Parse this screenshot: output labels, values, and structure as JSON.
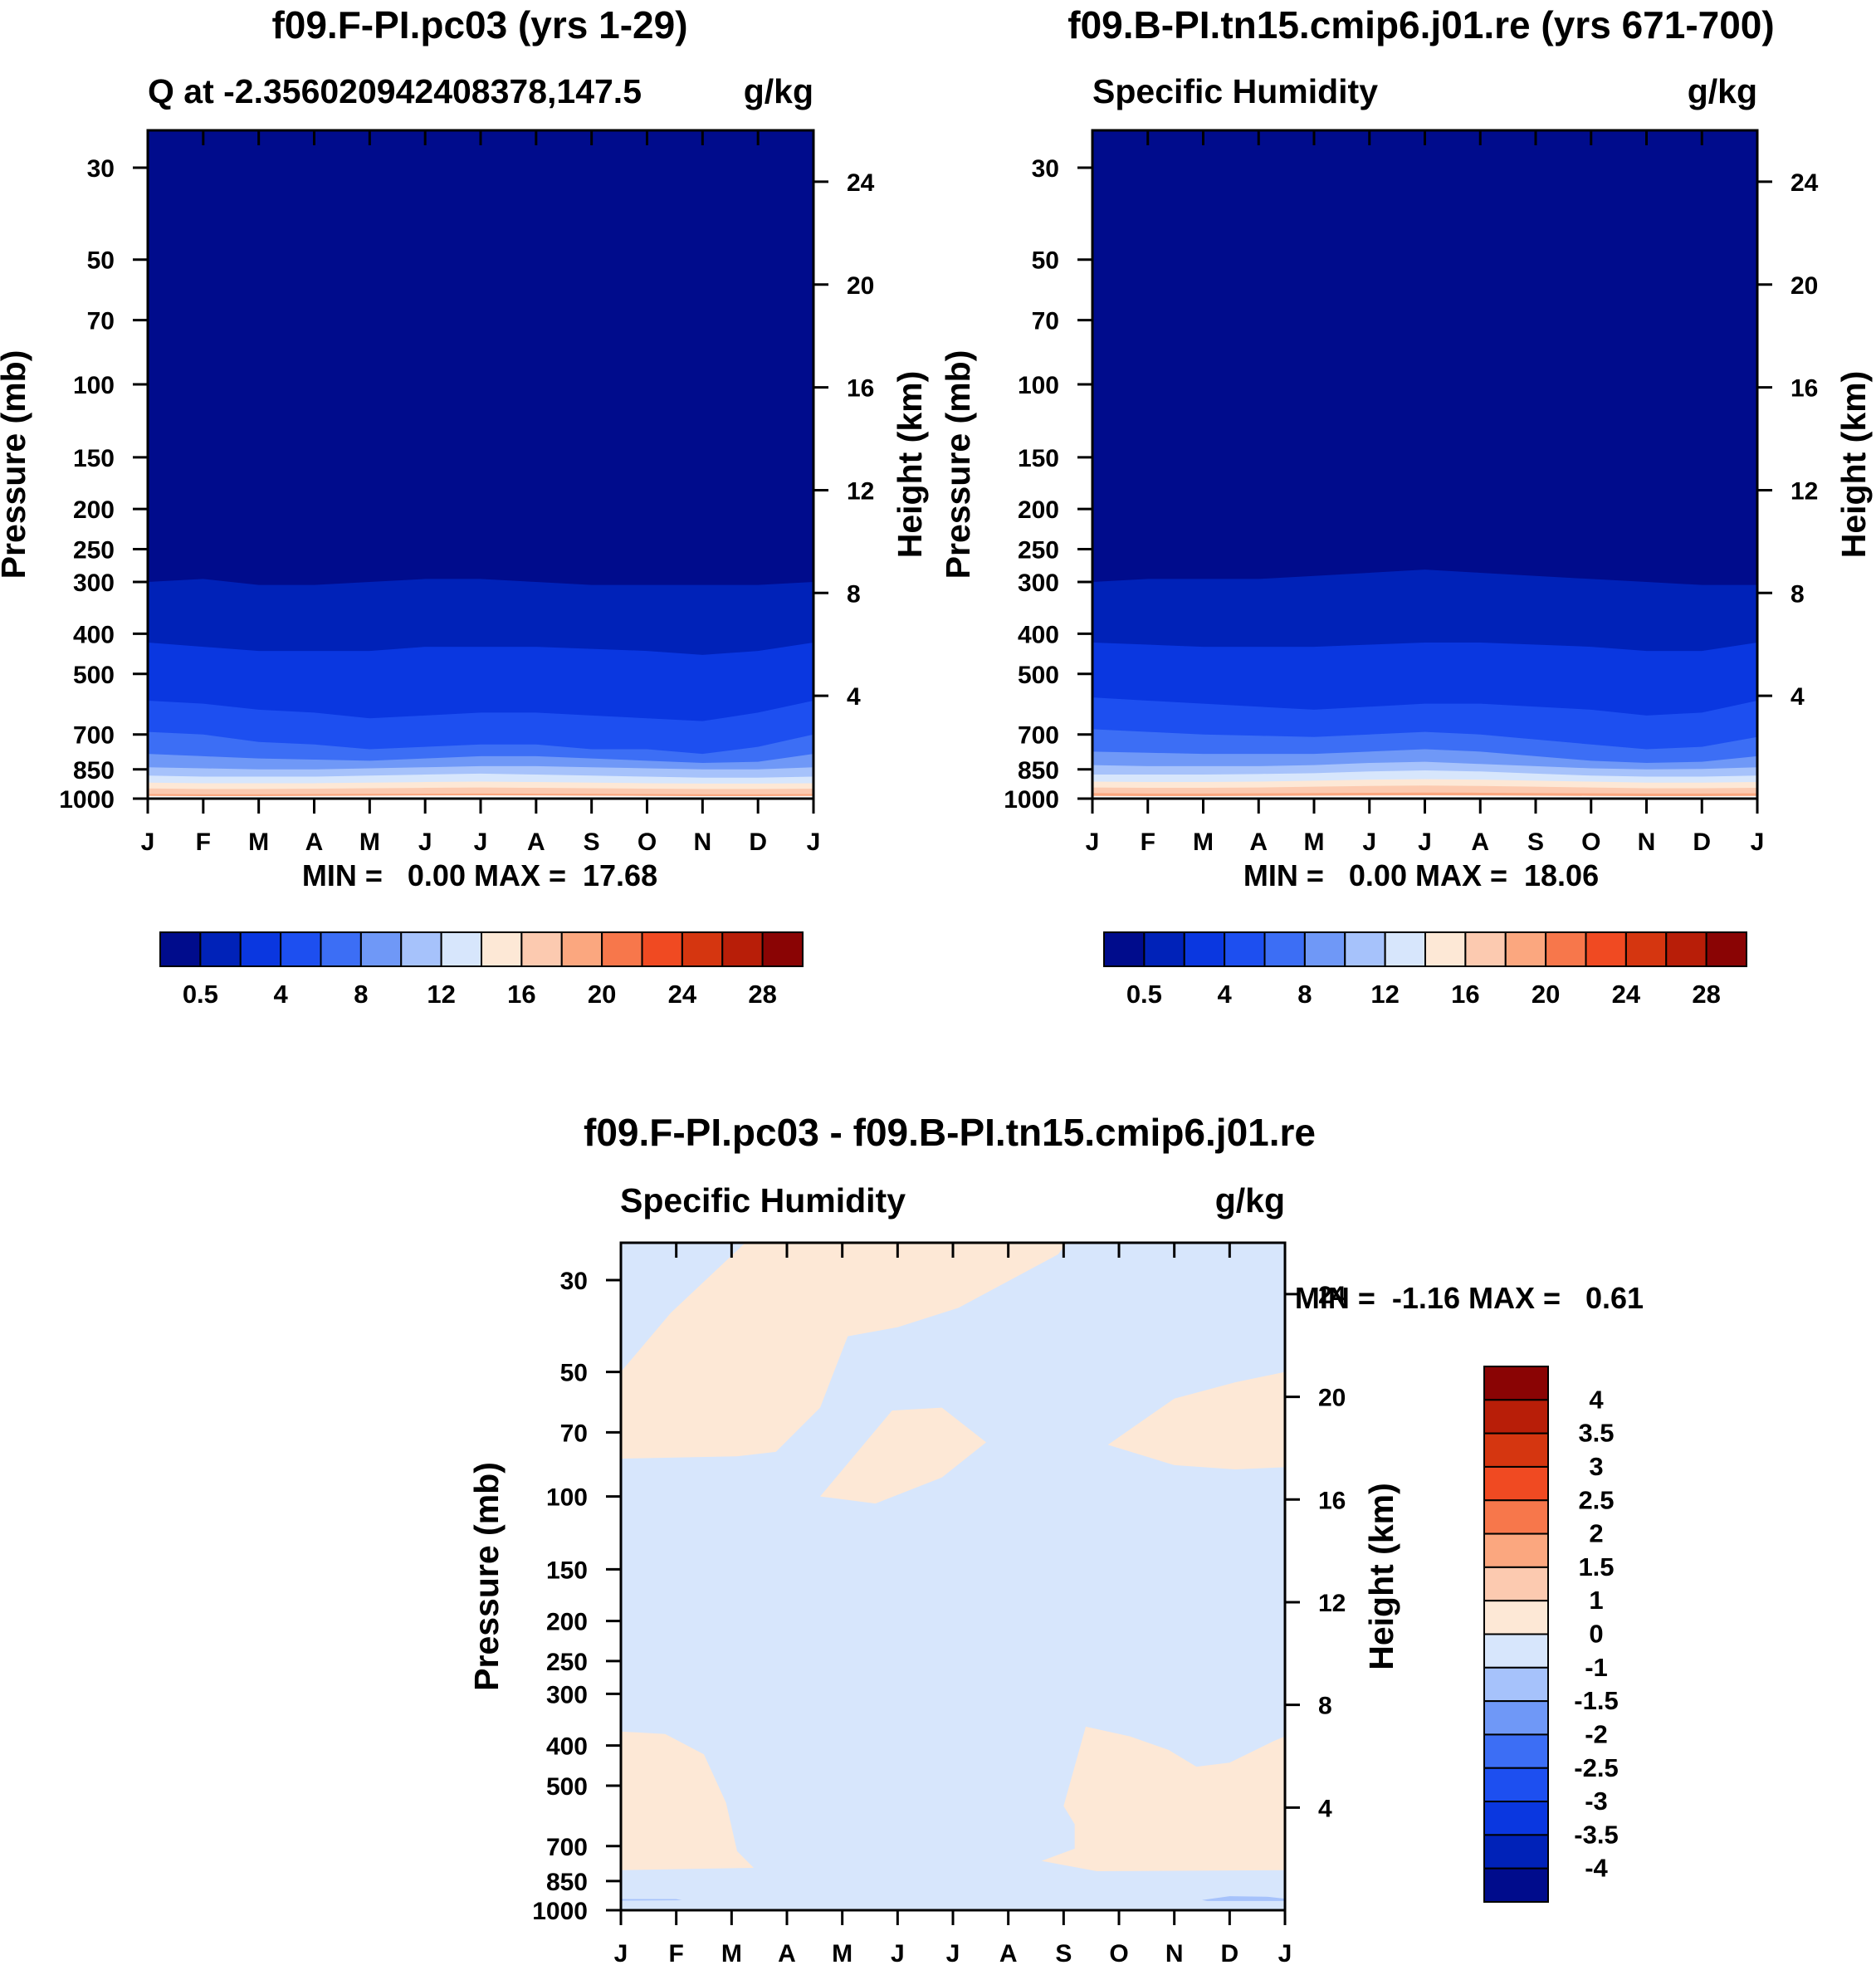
{
  "chart_data": [
    {
      "type": "heatmap",
      "title": "f09.F-PI.pc03 (yrs 1-29)",
      "left_label": "Q at -2.356020942408378,147.5",
      "right_label": "g/kg",
      "ylabel": "Pressure (mb)",
      "ylabel_right": "Height (km)",
      "x_ticks": [
        "J",
        "F",
        "M",
        "A",
        "M",
        "J",
        "J",
        "A",
        "S",
        "O",
        "N",
        "D",
        "J"
      ],
      "y_ticks": [
        "30",
        "50",
        "70",
        "100",
        "150",
        "200",
        "250",
        "300",
        "400",
        "500",
        "700",
        "850",
        "1000"
      ],
      "y_ticks_right": [
        "24",
        "20",
        "16",
        "12",
        "8",
        "4"
      ],
      "y_scale": "log",
      "ylim": [
        1000,
        24
      ],
      "stats_text": "MIN =   0.00 MAX =  17.68",
      "min": 0.0,
      "max": 17.68,
      "contour_boundaries_mb": [
        [
          300,
          295,
          305,
          305,
          300,
          295,
          295,
          300,
          305,
          305,
          305,
          305,
          300
        ],
        [
          420,
          430,
          440,
          440,
          440,
          430,
          430,
          430,
          435,
          440,
          450,
          440,
          420
        ],
        [
          580,
          590,
          610,
          620,
          640,
          630,
          620,
          620,
          630,
          640,
          650,
          620,
          580
        ],
        [
          690,
          700,
          730,
          740,
          760,
          750,
          740,
          740,
          760,
          760,
          780,
          750,
          700
        ],
        [
          780,
          790,
          800,
          805,
          810,
          800,
          790,
          790,
          800,
          810,
          820,
          815,
          780
        ],
        [
          840,
          845,
          850,
          850,
          845,
          840,
          835,
          835,
          840,
          845,
          850,
          850,
          840
        ],
        [
          880,
          885,
          885,
          885,
          880,
          875,
          870,
          875,
          880,
          885,
          890,
          890,
          885
        ],
        [
          915,
          918,
          918,
          918,
          915,
          912,
          910,
          912,
          915,
          918,
          920,
          920,
          918
        ],
        [
          945,
          948,
          948,
          946,
          944,
          942,
          940,
          942,
          944,
          946,
          948,
          948,
          946
        ],
        [
          975,
          976,
          976,
          975,
          974,
          973,
          972,
          973,
          974,
          975,
          976,
          976,
          975
        ]
      ],
      "colorbar": {
        "labels": [
          "0.5",
          "4",
          "8",
          "12",
          "16",
          "20",
          "24",
          "28"
        ],
        "colors": [
          "#000c8c",
          "#0022b8",
          "#0a37e0",
          "#1d4ff0",
          "#3c6ef5",
          "#6f98f7",
          "#a6c2fb",
          "#d7e6fc",
          "#fde8d6",
          "#fccab0",
          "#fba77f",
          "#f7774b",
          "#f04a22",
          "#d53610",
          "#b81e08",
          "#8a0404"
        ]
      }
    },
    {
      "type": "heatmap",
      "title": "f09.B-PI.tn15.cmip6.j01.re (yrs 671-700)",
      "left_label": "Specific Humidity",
      "right_label": "g/kg",
      "ylabel": "Pressure (mb)",
      "ylabel_right": "Height (km)",
      "x_ticks": [
        "J",
        "F",
        "M",
        "A",
        "M",
        "J",
        "J",
        "A",
        "S",
        "O",
        "N",
        "D",
        "J"
      ],
      "y_ticks": [
        "30",
        "50",
        "70",
        "100",
        "150",
        "200",
        "250",
        "300",
        "400",
        "500",
        "700",
        "850",
        "1000"
      ],
      "y_ticks_right": [
        "24",
        "20",
        "16",
        "12",
        "8",
        "4"
      ],
      "y_scale": "log",
      "ylim": [
        1000,
        24
      ],
      "stats_text": "MIN =   0.00 MAX =  18.06",
      "min": 0.0,
      "max": 18.06,
      "contour_boundaries_mb": [
        [
          300,
          295,
          295,
          295,
          290,
          285,
          280,
          285,
          290,
          295,
          300,
          305,
          305
        ],
        [
          420,
          425,
          430,
          430,
          430,
          425,
          420,
          420,
          425,
          430,
          440,
          440,
          420
        ],
        [
          570,
          580,
          590,
          600,
          610,
          600,
          590,
          590,
          600,
          610,
          630,
          620,
          580
        ],
        [
          680,
          690,
          700,
          705,
          710,
          700,
          690,
          700,
          720,
          740,
          760,
          750,
          710
        ],
        [
          770,
          775,
          780,
          780,
          780,
          770,
          760,
          770,
          790,
          810,
          820,
          815,
          790
        ],
        [
          830,
          835,
          835,
          835,
          830,
          820,
          815,
          825,
          835,
          845,
          850,
          848,
          840
        ],
        [
          875,
          875,
          875,
          872,
          868,
          860,
          855,
          860,
          870,
          880,
          885,
          885,
          880
        ],
        [
          910,
          912,
          912,
          910,
          905,
          900,
          898,
          900,
          905,
          910,
          915,
          915,
          912
        ],
        [
          940,
          942,
          942,
          940,
          936,
          932,
          930,
          932,
          936,
          940,
          944,
          944,
          942
        ],
        [
          970,
          972,
          972,
          971,
          970,
          968,
          967,
          968,
          970,
          971,
          972,
          972,
          971
        ]
      ],
      "colorbar": {
        "labels": [
          "0.5",
          "4",
          "8",
          "12",
          "16",
          "20",
          "24",
          "28"
        ],
        "colors": [
          "#000c8c",
          "#0022b8",
          "#0a37e0",
          "#1d4ff0",
          "#3c6ef5",
          "#6f98f7",
          "#a6c2fb",
          "#d7e6fc",
          "#fde8d6",
          "#fccab0",
          "#fba77f",
          "#f7774b",
          "#f04a22",
          "#d53610",
          "#b81e08",
          "#8a0404"
        ]
      }
    },
    {
      "type": "heatmap",
      "title": "f09.F-PI.pc03 - f09.B-PI.tn15.cmip6.j01.re",
      "left_label": "Specific Humidity",
      "right_label": "g/kg",
      "ylabel": "Pressure (mb)",
      "ylabel_right": "Height (km)",
      "x_ticks": [
        "J",
        "F",
        "M",
        "A",
        "M",
        "J",
        "J",
        "A",
        "S",
        "O",
        "N",
        "D",
        "J"
      ],
      "y_ticks": [
        "30",
        "50",
        "70",
        "100",
        "150",
        "200",
        "250",
        "300",
        "400",
        "500",
        "700",
        "850",
        "1000"
      ],
      "y_ticks_right": [
        "24",
        "20",
        "16",
        "12",
        "8",
        "4"
      ],
      "y_scale": "log",
      "ylim": [
        1000,
        24
      ],
      "stats_text": "MIN =  -1.16 MAX =   0.61",
      "min": -1.16,
      "max": 0.61,
      "background_color": "#d7e6fc",
      "regions": [
        {
          "level": "0 to 1",
          "color": "#fde8d6",
          "points": [
            [
              0,
              50
            ],
            [
              0.9,
              36
            ],
            [
              2.3,
              24
            ],
            [
              8.1,
              24
            ],
            [
              7.9,
              26
            ],
            [
              6.1,
              35
            ],
            [
              5,
              39
            ],
            [
              4.1,
              41
            ],
            [
              3.9,
              48
            ],
            [
              3.6,
              61
            ],
            [
              2.8,
              78
            ],
            [
              2.1,
              80
            ],
            [
              0,
              81
            ]
          ]
        },
        {
          "level": "0 to 1",
          "color": "#fde8d6",
          "points": [
            [
              4.9,
              62
            ],
            [
              5.8,
              61
            ],
            [
              6.6,
              74
            ],
            [
              5.8,
              90
            ],
            [
              4.6,
              104
            ],
            [
              3.6,
              100
            ]
          ]
        },
        {
          "level": "0 to 1",
          "color": "#fde8d6",
          "points": [
            [
              12,
              50
            ],
            [
              11.1,
              53
            ],
            [
              10,
              58
            ],
            [
              8.8,
              75
            ],
            [
              10,
              84
            ],
            [
              11.1,
              86
            ],
            [
              12,
              85
            ]
          ]
        },
        {
          "level": "0 to 1",
          "color": "#fde8d6",
          "points": [
            [
              0,
              370
            ],
            [
              0.8,
              375
            ],
            [
              1.5,
              420
            ],
            [
              1.9,
              550
            ],
            [
              2.1,
              720
            ],
            [
              2.4,
              790
            ],
            [
              0,
              800
            ]
          ]
        },
        {
          "level": "0 to 1",
          "color": "#fde8d6",
          "points": [
            [
              7.6,
              760
            ],
            [
              8.2,
              710
            ],
            [
              8.2,
              620
            ],
            [
              8,
              560
            ],
            [
              8.4,
              360
            ],
            [
              9.2,
              380
            ],
            [
              9.9,
              410
            ],
            [
              10.4,
              450
            ],
            [
              11,
              440
            ],
            [
              11.8,
              390
            ],
            [
              12,
              380
            ],
            [
              12,
              800
            ],
            [
              8.6,
              805
            ]
          ]
        },
        {
          "level": "-1 to 0.5",
          "color": "#a6c2fb",
          "points": [
            [
              0,
              940
            ],
            [
              1,
              940
            ],
            [
              1.1,
              946
            ],
            [
              0,
              948
            ]
          ]
        },
        {
          "level": "-1 to 0.5",
          "color": "#a6c2fb",
          "points": [
            [
              10.5,
              945
            ],
            [
              11,
              925
            ],
            [
              11.7,
              928
            ],
            [
              12,
              938
            ],
            [
              12,
              950
            ],
            [
              10.6,
              950
            ]
          ]
        }
      ],
      "colorbar": {
        "labels": [
          "4",
          "3.5",
          "3",
          "2.5",
          "2",
          "1.5",
          "1",
          "0",
          "-1",
          "-1.5",
          "-2",
          "-2.5",
          "-3",
          "-3.5",
          "-4"
        ],
        "colors": [
          "#8a0404",
          "#b81e08",
          "#d53610",
          "#f04a22",
          "#f7774b",
          "#fba77f",
          "#fccab0",
          "#fde8d6",
          "#d7e6fc",
          "#a6c2fb",
          "#6f98f7",
          "#3c6ef5",
          "#1d4ff0",
          "#0a37e0",
          "#0022b8",
          "#000c8c"
        ]
      }
    }
  ]
}
